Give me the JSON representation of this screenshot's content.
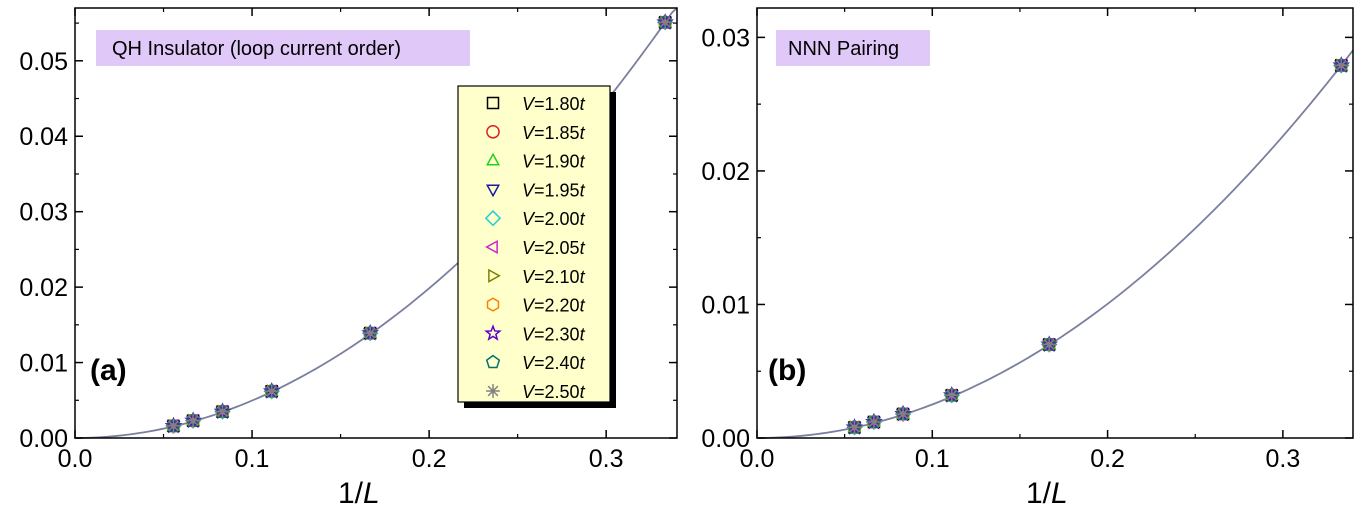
{
  "chart_data": [
    {
      "type": "scatter",
      "panel_label": "(a)",
      "annotation": "QH Insulator (loop current order)",
      "xlabel_prefix": "1/",
      "xlabel_var": "L",
      "xlim": [
        0,
        0.34
      ],
      "ylim": [
        0,
        0.057
      ],
      "x_ticks": [
        "0.0",
        "0.1",
        "0.2",
        "0.3"
      ],
      "x_tick_values": [
        0,
        0.1,
        0.2,
        0.3
      ],
      "y_ticks": [
        "0.00",
        "0.01",
        "0.02",
        "0.03",
        "0.04",
        "0.05"
      ],
      "y_tick_values": [
        0,
        0.01,
        0.02,
        0.03,
        0.04,
        0.05
      ],
      "x": [
        0.0556,
        0.0667,
        0.0833,
        0.1111,
        0.1667,
        0.3333
      ],
      "y": [
        0.0016,
        0.0023,
        0.0035,
        0.0062,
        0.0139,
        0.0551
      ],
      "fit_curve_color": "#7a7fa0",
      "annotation_bg": "#e0c8f8",
      "legend": {
        "position": "upper-middle",
        "bg": "#ffffcc",
        "var": "V",
        "unit": "t",
        "entries": [
          {
            "value": "=1.80",
            "marker": "square",
            "color": "#000000"
          },
          {
            "value": "=1.85",
            "marker": "circle",
            "color": "#e02020"
          },
          {
            "value": "=1.90",
            "marker": "triangle-up",
            "color": "#20d020"
          },
          {
            "value": "=1.95",
            "marker": "triangle-down",
            "color": "#1a1aa0"
          },
          {
            "value": "=2.00",
            "marker": "diamond",
            "color": "#20d0d0"
          },
          {
            "value": "=2.05",
            "marker": "triangle-left",
            "color": "#d020d0"
          },
          {
            "value": "=2.10",
            "marker": "triangle-right",
            "color": "#808000"
          },
          {
            "value": "=2.20",
            "marker": "hexagon",
            "color": "#ff8000"
          },
          {
            "value": "=2.30",
            "marker": "star",
            "color": "#6000d0"
          },
          {
            "value": "=2.40",
            "marker": "pentagon",
            "color": "#007070"
          },
          {
            "value": "=2.50",
            "marker": "asterisk",
            "color": "#808080"
          }
        ]
      }
    },
    {
      "type": "scatter",
      "panel_label": "(b)",
      "annotation": "NNN Pairing",
      "xlabel_prefix": "1/",
      "xlabel_var": "L",
      "xlim": [
        0,
        0.34
      ],
      "ylim": [
        0,
        0.0322
      ],
      "x_ticks": [
        "0.0",
        "0.1",
        "0.2",
        "0.3"
      ],
      "x_tick_values": [
        0,
        0.1,
        0.2,
        0.3
      ],
      "y_ticks": [
        "0.00",
        "0.01",
        "0.02",
        "0.03"
      ],
      "y_tick_values": [
        0,
        0.01,
        0.02,
        0.03
      ],
      "x": [
        0.0556,
        0.0667,
        0.0833,
        0.1111,
        0.1667,
        0.3333
      ],
      "y": [
        0.0008,
        0.0012,
        0.0018,
        0.0032,
        0.007,
        0.0279
      ],
      "fit_curve_color": "#7a7fa0",
      "annotation_bg": "#e0c8f8"
    }
  ]
}
